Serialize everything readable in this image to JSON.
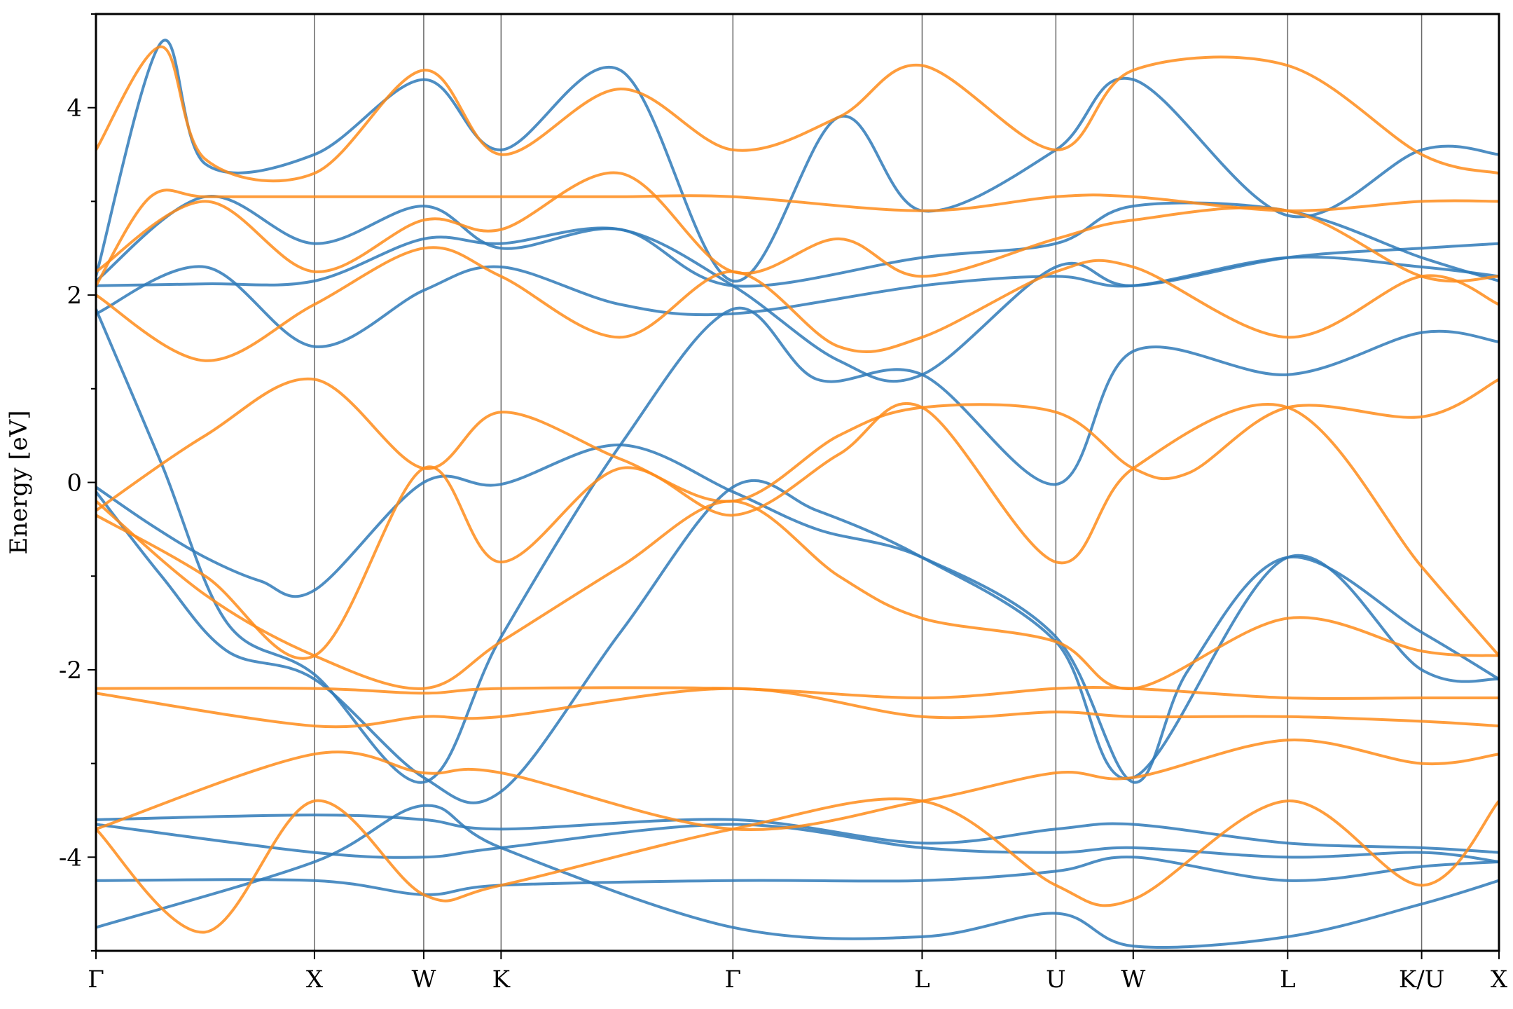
{
  "chart_data": {
    "type": "line",
    "title": "",
    "xlabel": "",
    "ylabel": "Energy [eV]",
    "ylim": [
      -5,
      5
    ],
    "y_ticks": [
      -4,
      -2,
      0,
      2,
      4
    ],
    "grid": "vertical lines at high-symmetry points",
    "legend": "none",
    "colors": {
      "blue": "#2f7ab8",
      "orange": "#ff8c1a"
    },
    "kpath_labels": [
      "Γ",
      "X",
      "W",
      "K",
      "Γ",
      "L",
      "U",
      "W",
      "L",
      "K/U",
      "X"
    ],
    "kpath_positions": [
      0,
      1.0,
      1.5,
      1.854,
      2.915,
      3.781,
      4.393,
      4.747,
      5.454,
      6.067,
      6.421
    ],
    "series": [
      {
        "color": "blue",
        "x": [
          0,
          0.25,
          0.5,
          0.75,
          1.0,
          1.5,
          1.854,
          2.4,
          2.915,
          3.3,
          3.781,
          4.393,
          4.747,
          5.0,
          5.454,
          6.067,
          6.421
        ],
        "y": [
          -0.05,
          -0.45,
          -0.8,
          -1.05,
          -1.15,
          -0.0,
          -0.02,
          0.4,
          -0.1,
          -0.5,
          -0.8,
          -1.65,
          -3.2,
          -2.0,
          -0.8,
          -1.6,
          -2.1
        ]
      },
      {
        "color": "blue",
        "x": [
          0,
          0.3,
          0.6,
          1.0,
          1.5,
          1.854,
          2.4,
          2.915,
          3.3,
          3.781,
          4.393,
          4.747,
          5.454,
          6.067,
          6.421
        ],
        "y": [
          1.85,
          0.2,
          -1.5,
          -2.05,
          -3.2,
          -1.65,
          0.4,
          1.85,
          1.1,
          1.15,
          -0.02,
          1.4,
          1.15,
          1.6,
          1.5
        ]
      },
      {
        "color": "blue",
        "x": [
          0,
          0.3,
          0.6,
          1.0,
          1.5,
          1.854,
          2.4,
          2.915,
          3.3,
          3.781,
          4.393,
          4.747,
          5.454,
          6.067,
          6.421
        ],
        "y": [
          -0.1,
          -1.0,
          -1.8,
          -2.1,
          -3.15,
          -3.3,
          -1.6,
          -0.05,
          -0.3,
          -0.8,
          -1.7,
          -3.15,
          -0.8,
          -2.0,
          -2.1
        ]
      },
      {
        "color": "blue",
        "x": [
          0,
          0.5,
          1.0,
          1.5,
          1.854,
          2.4,
          2.915,
          3.4,
          3.781,
          4.393,
          4.747,
          5.454,
          6.067,
          6.421
        ],
        "y": [
          2.1,
          2.12,
          2.15,
          2.6,
          2.55,
          2.7,
          2.1,
          1.3,
          1.15,
          2.3,
          2.1,
          2.4,
          2.5,
          2.55
        ]
      },
      {
        "color": "blue",
        "x": [
          0,
          0.3,
          0.5,
          1.0,
          1.5,
          1.854,
          2.4,
          2.915,
          3.4,
          3.781,
          4.393,
          4.747,
          5.454,
          6.067,
          6.421
        ],
        "y": [
          2.2,
          4.7,
          3.4,
          3.5,
          4.3,
          3.55,
          4.4,
          2.15,
          3.9,
          2.9,
          3.55,
          4.3,
          2.85,
          3.55,
          3.5
        ]
      },
      {
        "color": "blue",
        "x": [
          0,
          0.5,
          1.0,
          1.5,
          1.854,
          2.4,
          2.915,
          3.781,
          4.393,
          4.747,
          5.454,
          6.067,
          6.421
        ],
        "y": [
          2.15,
          3.05,
          2.55,
          2.95,
          2.5,
          2.7,
          2.1,
          2.4,
          2.55,
          2.95,
          2.9,
          2.4,
          2.15
        ]
      },
      {
        "color": "blue",
        "x": [
          0,
          0.5,
          1.0,
          1.5,
          1.854,
          2.4,
          2.915,
          3.781,
          4.393,
          4.747,
          5.454,
          6.067,
          6.421
        ],
        "y": [
          1.8,
          2.3,
          1.45,
          2.05,
          2.3,
          1.9,
          1.8,
          2.1,
          2.2,
          2.1,
          2.4,
          2.3,
          2.2
        ]
      },
      {
        "color": "blue",
        "x": [
          0,
          1.0,
          1.5,
          1.854,
          2.915,
          3.781,
          4.393,
          4.747,
          5.454,
          6.067,
          6.421
        ],
        "y": [
          -3.6,
          -3.55,
          -3.6,
          -3.7,
          -3.6,
          -3.85,
          -3.7,
          -3.65,
          -3.85,
          -3.9,
          -3.95
        ]
      },
      {
        "color": "blue",
        "x": [
          0,
          1.0,
          1.5,
          1.854,
          2.915,
          3.781,
          4.393,
          4.747,
          5.454,
          6.067,
          6.421
        ],
        "y": [
          -3.65,
          -3.95,
          -4.0,
          -3.9,
          -3.65,
          -3.9,
          -3.95,
          -3.9,
          -4.0,
          -3.95,
          -4.05
        ]
      },
      {
        "color": "blue",
        "x": [
          0,
          1.0,
          1.5,
          1.854,
          2.915,
          3.781,
          4.393,
          4.747,
          5.454,
          6.067,
          6.421
        ],
        "y": [
          -4.25,
          -4.25,
          -4.4,
          -4.3,
          -4.25,
          -4.25,
          -4.15,
          -4.0,
          -4.25,
          -4.1,
          -4.05
        ]
      },
      {
        "color": "blue",
        "x": [
          0,
          1.0,
          1.5,
          1.854,
          2.915,
          3.781,
          4.393,
          4.747,
          5.454,
          6.067,
          6.421
        ],
        "y": [
          -4.75,
          -4.05,
          -3.45,
          -3.9,
          -4.75,
          -4.85,
          -4.6,
          -4.95,
          -4.85,
          -4.5,
          -4.25
        ]
      },
      {
        "color": "orange",
        "x": [
          0,
          0.5,
          1.0,
          1.5,
          1.854,
          2.4,
          2.915,
          3.4,
          3.781,
          4.393,
          4.747,
          5.0,
          5.454,
          6.067,
          6.421
        ],
        "y": [
          -0.3,
          0.5,
          1.1,
          0.15,
          0.75,
          0.25,
          -0.2,
          0.5,
          0.8,
          0.75,
          0.15,
          0.1,
          0.8,
          0.7,
          1.1
        ]
      },
      {
        "color": "orange",
        "x": [
          0,
          0.5,
          1.0,
          1.5,
          1.854,
          2.4,
          2.915,
          3.4,
          3.781,
          4.393,
          4.747,
          5.454,
          6.067,
          6.421
        ],
        "y": [
          -0.35,
          -1.0,
          -1.85,
          0.15,
          -0.85,
          0.15,
          -0.35,
          0.3,
          0.8,
          -0.85,
          0.15,
          0.8,
          -0.9,
          -1.85
        ]
      },
      {
        "color": "orange",
        "x": [
          0,
          0.5,
          1.0,
          1.5,
          1.854,
          2.4,
          2.915,
          3.4,
          3.781,
          4.393,
          4.747,
          5.454,
          6.067,
          6.421
        ],
        "y": [
          -0.2,
          -1.2,
          -1.85,
          -2.2,
          -1.7,
          -0.9,
          -0.2,
          -1.0,
          -1.45,
          -1.7,
          -2.2,
          -1.45,
          -1.8,
          -1.85
        ]
      },
      {
        "color": "orange",
        "x": [
          0,
          1.0,
          1.5,
          1.854,
          2.915,
          3.781,
          4.393,
          4.747,
          5.454,
          6.067,
          6.421
        ],
        "y": [
          -2.2,
          -2.2,
          -2.25,
          -2.2,
          -2.2,
          -2.3,
          -2.2,
          -2.2,
          -2.3,
          -2.3,
          -2.3
        ]
      },
      {
        "color": "orange",
        "x": [
          0,
          1.0,
          1.5,
          1.854,
          2.915,
          3.781,
          4.393,
          4.747,
          5.454,
          6.067,
          6.421
        ],
        "y": [
          -2.25,
          -2.6,
          -2.5,
          -2.5,
          -2.2,
          -2.5,
          -2.45,
          -2.5,
          -2.5,
          -2.55,
          -2.6
        ]
      },
      {
        "color": "orange",
        "x": [
          0,
          1.0,
          1.5,
          1.854,
          2.915,
          3.781,
          4.393,
          4.747,
          5.454,
          6.067,
          6.421
        ],
        "y": [
          -3.7,
          -2.9,
          -3.1,
          -3.1,
          -3.7,
          -3.4,
          -3.1,
          -3.15,
          -2.75,
          -3.0,
          -2.9
        ]
      },
      {
        "color": "orange",
        "x": [
          0,
          0.5,
          1.0,
          1.5,
          1.854,
          2.915,
          3.781,
          4.393,
          4.747,
          5.454,
          6.067,
          6.421
        ],
        "y": [
          -3.7,
          -4.8,
          -3.4,
          -4.4,
          -4.3,
          -3.7,
          -3.4,
          -4.3,
          -4.45,
          -3.4,
          -4.3,
          -3.4
        ]
      },
      {
        "color": "orange",
        "x": [
          0,
          0.25,
          0.5,
          1.0,
          1.5,
          1.854,
          2.4,
          2.915,
          3.781,
          4.393,
          4.747,
          5.454,
          6.067,
          6.421
        ],
        "y": [
          2.1,
          3.05,
          3.05,
          3.05,
          3.05,
          3.05,
          3.05,
          3.05,
          2.9,
          3.05,
          3.05,
          2.9,
          3.0,
          3.0
        ]
      },
      {
        "color": "orange",
        "x": [
          0,
          0.3,
          0.5,
          1.0,
          1.5,
          1.854,
          2.4,
          2.915,
          3.4,
          3.781,
          4.393,
          4.747,
          5.454,
          6.067,
          6.421
        ],
        "y": [
          3.55,
          4.65,
          3.45,
          3.3,
          4.4,
          3.5,
          4.2,
          3.55,
          3.9,
          4.45,
          3.55,
          4.4,
          4.45,
          3.5,
          3.3
        ]
      },
      {
        "color": "orange",
        "x": [
          0,
          0.5,
          1.0,
          1.5,
          1.854,
          2.4,
          2.915,
          3.4,
          3.781,
          4.393,
          4.747,
          5.454,
          6.067,
          6.421
        ],
        "y": [
          2.25,
          3.0,
          2.25,
          2.8,
          2.7,
          3.3,
          2.25,
          2.6,
          2.2,
          2.6,
          2.8,
          2.9,
          2.2,
          2.2
        ]
      },
      {
        "color": "orange",
        "x": [
          0,
          0.5,
          1.0,
          1.5,
          1.854,
          2.4,
          2.915,
          3.4,
          3.781,
          4.393,
          4.747,
          5.454,
          6.067,
          6.421
        ],
        "y": [
          2.0,
          1.3,
          1.9,
          2.5,
          2.2,
          1.55,
          2.25,
          1.45,
          1.55,
          2.25,
          2.3,
          1.55,
          2.2,
          1.9
        ]
      }
    ]
  }
}
